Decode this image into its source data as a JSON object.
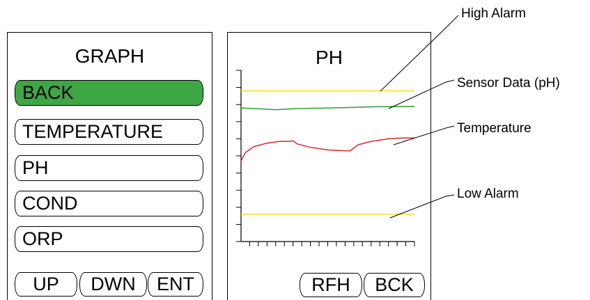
{
  "menu_screen": {
    "title": "GRAPH",
    "items": [
      {
        "label": "BACK",
        "selected": true
      },
      {
        "label": "TEMPERATURE",
        "selected": false
      },
      {
        "label": "PH",
        "selected": false
      },
      {
        "label": "COND",
        "selected": false
      },
      {
        "label": "ORP",
        "selected": false
      }
    ],
    "softkeys": [
      "UP",
      "DWN",
      "ENT"
    ]
  },
  "graph_screen": {
    "title": "PH",
    "softkeys": [
      "RFH",
      "BCK"
    ]
  },
  "callouts": {
    "high_alarm": "High Alarm",
    "sensor_data": "Sensor Data (pH)",
    "temperature": "Temperature",
    "low_alarm": "Low Alarm"
  },
  "colors": {
    "selected_fill": "#3ea744",
    "alarm_line": "#f2e018",
    "sensor_line": "#2f9b3a",
    "temperature_line": "#d7262b"
  },
  "chart_data": {
    "type": "line",
    "title": "PH",
    "xlabel": "",
    "ylabel": "",
    "xlim": [
      0,
      20
    ],
    "ylim": [
      0,
      10
    ],
    "grid": false,
    "x_tick_count": 20,
    "y_tick_count": 10,
    "series": [
      {
        "name": "High Alarm",
        "color": "#f2e018",
        "x": [
          0,
          20
        ],
        "y": [
          8.8,
          8.8
        ]
      },
      {
        "name": "Sensor Data (pH)",
        "color": "#2f9b3a",
        "x": [
          0,
          2,
          4,
          6,
          8,
          10,
          12,
          14,
          16,
          18,
          20
        ],
        "y": [
          7.8,
          7.75,
          7.7,
          7.75,
          7.78,
          7.8,
          7.82,
          7.85,
          7.88,
          7.88,
          7.9
        ]
      },
      {
        "name": "Temperature",
        "color": "#d7262b",
        "x": [
          0,
          0.5,
          1.5,
          3,
          4.5,
          5.5,
          6,
          6.5,
          8,
          10,
          12,
          12.6,
          13.5,
          15,
          17,
          18.5,
          20
        ],
        "y": [
          4.7,
          5.2,
          5.55,
          5.75,
          5.85,
          5.85,
          5.88,
          5.7,
          5.5,
          5.35,
          5.3,
          5.3,
          5.65,
          5.85,
          6.0,
          6.05,
          6.05
        ]
      },
      {
        "name": "Low Alarm",
        "color": "#f2e018",
        "x": [
          0,
          20
        ],
        "y": [
          1.6,
          1.6
        ]
      }
    ]
  }
}
